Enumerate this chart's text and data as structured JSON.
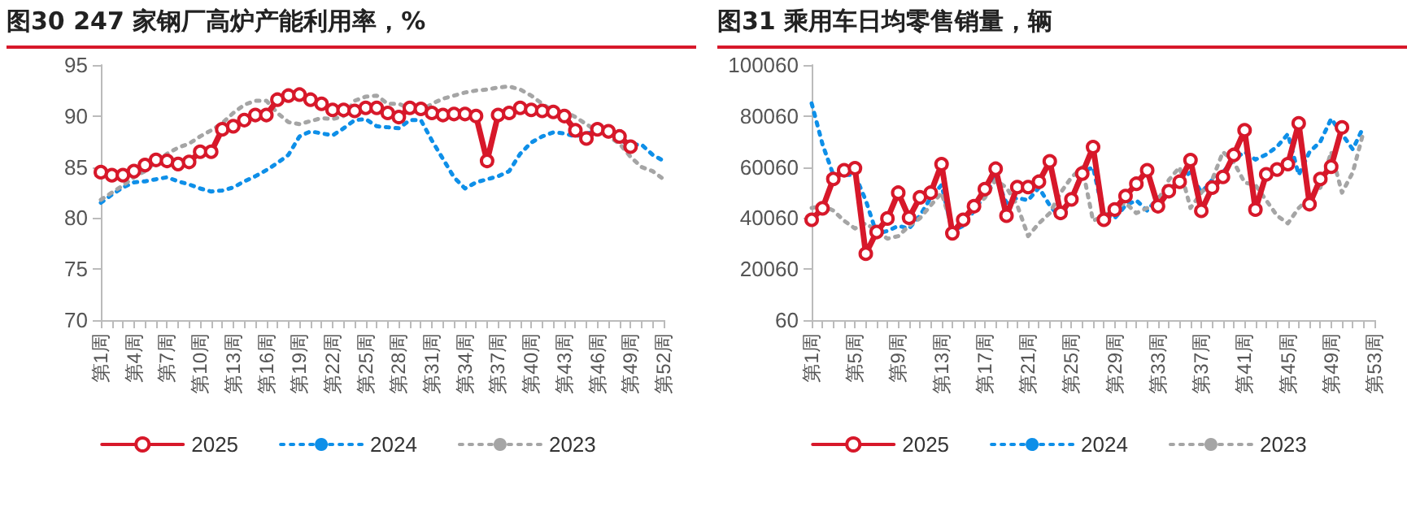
{
  "chart_data": [
    {
      "type": "line",
      "title": "图30  247 家钢厂高炉产能利用率，%",
      "categories": [
        "第1周",
        null,
        null,
        "第4周",
        null,
        null,
        "第7周",
        null,
        null,
        "第10周",
        null,
        null,
        "第13周",
        null,
        null,
        "第16周",
        null,
        null,
        "第19周",
        null,
        null,
        "第22周",
        null,
        null,
        "第25周",
        null,
        null,
        "第28周",
        null,
        null,
        "第31周",
        null,
        null,
        "第34周",
        null,
        null,
        "第37周",
        null,
        null,
        "第40周",
        null,
        null,
        "第43周",
        null,
        null,
        "第46周",
        null,
        null,
        "第49周",
        null,
        null,
        "第52周"
      ],
      "series": [
        {
          "name": "2025",
          "color": "#d7182a",
          "marker": "circle",
          "line_style": "solid",
          "values": [
            84.5,
            84.2,
            84.2,
            84.6,
            85.2,
            85.7,
            85.6,
            85.3,
            85.5,
            86.5,
            86.5,
            88.7,
            89.0,
            89.6,
            90.1,
            90.1,
            91.6,
            92.0,
            92.1,
            91.6,
            91.2,
            90.6,
            90.6,
            90.5,
            90.8,
            90.8,
            90.3,
            89.9,
            90.8,
            90.7,
            90.3,
            90.1,
            90.2,
            90.2,
            90.0,
            85.6,
            90.1,
            90.3,
            90.8,
            90.6,
            90.5,
            90.4,
            90.0,
            88.6,
            87.8,
            88.7,
            88.5,
            88.0,
            87.0,
            null,
            null,
            null
          ]
        },
        {
          "name": "2024",
          "color": "#0e8fe8",
          "marker": "none",
          "line_style": "dotted",
          "values": [
            81.5,
            82.3,
            83.0,
            83.5,
            83.6,
            83.8,
            84.0,
            83.6,
            83.3,
            82.9,
            82.6,
            82.7,
            83.0,
            83.6,
            84.1,
            84.7,
            85.4,
            86.2,
            88.0,
            88.5,
            88.3,
            88.1,
            88.8,
            89.6,
            89.7,
            89.0,
            88.9,
            88.8,
            89.6,
            89.6,
            87.6,
            85.8,
            84.0,
            82.9,
            83.5,
            83.8,
            84.1,
            84.6,
            86.3,
            87.4,
            88.0,
            88.4,
            88.3,
            88.0,
            88.3,
            88.5,
            88.2,
            87.6,
            87.2,
            87.2,
            86.2,
            85.6
          ]
        },
        {
          "name": "2023",
          "color": "#a5a5a5",
          "marker": "none",
          "line_style": "dotted",
          "values": [
            81.8,
            82.5,
            83.2,
            84.0,
            84.6,
            85.5,
            86.3,
            86.9,
            87.3,
            88.0,
            88.6,
            89.3,
            90.3,
            91.1,
            91.5,
            91.5,
            90.3,
            89.4,
            89.2,
            89.5,
            89.8,
            89.7,
            90.0,
            91.5,
            91.9,
            92.0,
            91.2,
            91.2,
            90.7,
            90.5,
            91.2,
            91.7,
            92.0,
            92.3,
            92.5,
            92.6,
            92.8,
            92.9,
            92.6,
            92.0,
            91.2,
            90.5,
            90.5,
            89.9,
            89.2,
            88.5,
            88.0,
            87.3,
            86.0,
            85.0,
            84.6,
            83.8
          ]
        }
      ],
      "ylim": [
        70,
        95
      ],
      "yticks": [
        70,
        75,
        80,
        85,
        90,
        95
      ],
      "grid": false,
      "legend": "bottom"
    },
    {
      "type": "line",
      "title": "图31  乘用车日均零售销量，辆",
      "categories": [
        "第1周",
        null,
        null,
        null,
        "第5周",
        null,
        null,
        null,
        "第9周",
        null,
        null,
        null,
        "第13周",
        null,
        null,
        null,
        "第17周",
        null,
        null,
        null,
        "第21周",
        null,
        null,
        null,
        "第25周",
        null,
        null,
        null,
        "第29周",
        null,
        null,
        null,
        "第33周",
        null,
        null,
        null,
        "第37周",
        null,
        null,
        null,
        "第41周",
        null,
        null,
        null,
        "第45周",
        null,
        null,
        null,
        "第49周",
        null,
        null,
        null,
        "第53周"
      ],
      "series": [
        {
          "name": "2025",
          "color": "#d7182a",
          "marker": "circle",
          "line_style": "solid",
          "values": [
            39400,
            43900,
            55400,
            58800,
            59600,
            26100,
            34600,
            39900,
            50000,
            40200,
            48200,
            50000,
            61200,
            34100,
            39400,
            44700,
            51400,
            59400,
            41000,
            52200,
            52200,
            54300,
            62300,
            42100,
            47400,
            57500,
            67900,
            39400,
            43400,
            48700,
            53500,
            58800,
            44700,
            50600,
            54300,
            62800,
            42900,
            52000,
            56200,
            64800,
            74500,
            43400,
            57200,
            59100,
            61200,
            77200,
            45500,
            55400,
            60200,
            75600,
            null,
            null,
            null
          ]
        },
        {
          "name": "2024",
          "color": "#0e8fe8",
          "marker": "none",
          "line_style": "dotted",
          "values": [
            85000,
            69000,
            57000,
            57000,
            57000,
            47000,
            34000,
            35000,
            37000,
            36000,
            41000,
            48000,
            53000,
            35000,
            37000,
            43000,
            49000,
            56000,
            46000,
            48000,
            47000,
            52000,
            45000,
            40000,
            48000,
            58000,
            60000,
            41000,
            40000,
            45000,
            47000,
            43000,
            48000,
            51000,
            55000,
            58000,
            50000,
            55000,
            58000,
            63000,
            66000,
            63000,
            65000,
            68000,
            73000,
            57000,
            66000,
            70000,
            79000,
            73000,
            67000,
            76000,
            null
          ]
        },
        {
          "name": "2023",
          "color": "#a5a5a5",
          "marker": "none",
          "line_style": "dotted",
          "values": [
            44000,
            45000,
            43000,
            39000,
            36000,
            38000,
            35000,
            32000,
            33000,
            37000,
            40000,
            45000,
            50000,
            36000,
            38000,
            44000,
            48000,
            55000,
            52000,
            45000,
            33000,
            38000,
            42000,
            50000,
            56000,
            60000,
            39000,
            41000,
            44000,
            46000,
            42000,
            44000,
            47000,
            55000,
            60000,
            44000,
            50000,
            55000,
            66000,
            62000,
            54000,
            53000,
            47000,
            41000,
            38000,
            44000,
            48000,
            52000,
            66000,
            50000,
            58000,
            74000,
            null
          ]
        }
      ],
      "ylim": [
        60,
        100060
      ],
      "yticks": [
        60,
        20060,
        40060,
        60060,
        80060,
        100060
      ],
      "grid": false,
      "legend": "bottom"
    }
  ]
}
